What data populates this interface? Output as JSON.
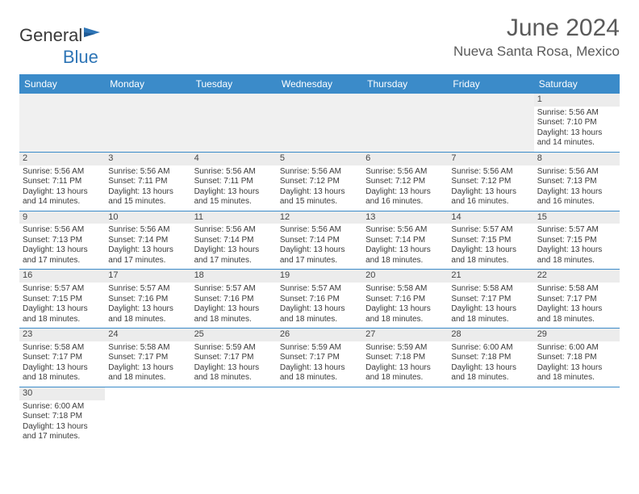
{
  "logo": {
    "text1": "General",
    "text2": "Blue"
  },
  "header": {
    "title": "June 2024",
    "location": "Nueva Santa Rosa, Mexico"
  },
  "colors": {
    "header_bar": "#3b8bc9",
    "header_text": "#ffffff",
    "daynum_bg": "#ececec",
    "border": "#3b8bc9",
    "body_text": "#3a3a3a",
    "title_text": "#5a5a5a",
    "logo_blue": "#2e75b6"
  },
  "weekdays": [
    "Sunday",
    "Monday",
    "Tuesday",
    "Wednesday",
    "Thursday",
    "Friday",
    "Saturday"
  ],
  "weeks": [
    [
      {
        "day": "",
        "empty": true
      },
      {
        "day": "",
        "empty": true
      },
      {
        "day": "",
        "empty": true
      },
      {
        "day": "",
        "empty": true
      },
      {
        "day": "",
        "empty": true
      },
      {
        "day": "",
        "empty": true
      },
      {
        "day": "1",
        "sunrise": "Sunrise: 5:56 AM",
        "sunset": "Sunset: 7:10 PM",
        "daylight1": "Daylight: 13 hours",
        "daylight2": "and 14 minutes."
      }
    ],
    [
      {
        "day": "2",
        "sunrise": "Sunrise: 5:56 AM",
        "sunset": "Sunset: 7:11 PM",
        "daylight1": "Daylight: 13 hours",
        "daylight2": "and 14 minutes."
      },
      {
        "day": "3",
        "sunrise": "Sunrise: 5:56 AM",
        "sunset": "Sunset: 7:11 PM",
        "daylight1": "Daylight: 13 hours",
        "daylight2": "and 15 minutes."
      },
      {
        "day": "4",
        "sunrise": "Sunrise: 5:56 AM",
        "sunset": "Sunset: 7:11 PM",
        "daylight1": "Daylight: 13 hours",
        "daylight2": "and 15 minutes."
      },
      {
        "day": "5",
        "sunrise": "Sunrise: 5:56 AM",
        "sunset": "Sunset: 7:12 PM",
        "daylight1": "Daylight: 13 hours",
        "daylight2": "and 15 minutes."
      },
      {
        "day": "6",
        "sunrise": "Sunrise: 5:56 AM",
        "sunset": "Sunset: 7:12 PM",
        "daylight1": "Daylight: 13 hours",
        "daylight2": "and 16 minutes."
      },
      {
        "day": "7",
        "sunrise": "Sunrise: 5:56 AM",
        "sunset": "Sunset: 7:12 PM",
        "daylight1": "Daylight: 13 hours",
        "daylight2": "and 16 minutes."
      },
      {
        "day": "8",
        "sunrise": "Sunrise: 5:56 AM",
        "sunset": "Sunset: 7:13 PM",
        "daylight1": "Daylight: 13 hours",
        "daylight2": "and 16 minutes."
      }
    ],
    [
      {
        "day": "9",
        "sunrise": "Sunrise: 5:56 AM",
        "sunset": "Sunset: 7:13 PM",
        "daylight1": "Daylight: 13 hours",
        "daylight2": "and 17 minutes."
      },
      {
        "day": "10",
        "sunrise": "Sunrise: 5:56 AM",
        "sunset": "Sunset: 7:14 PM",
        "daylight1": "Daylight: 13 hours",
        "daylight2": "and 17 minutes."
      },
      {
        "day": "11",
        "sunrise": "Sunrise: 5:56 AM",
        "sunset": "Sunset: 7:14 PM",
        "daylight1": "Daylight: 13 hours",
        "daylight2": "and 17 minutes."
      },
      {
        "day": "12",
        "sunrise": "Sunrise: 5:56 AM",
        "sunset": "Sunset: 7:14 PM",
        "daylight1": "Daylight: 13 hours",
        "daylight2": "and 17 minutes."
      },
      {
        "day": "13",
        "sunrise": "Sunrise: 5:56 AM",
        "sunset": "Sunset: 7:14 PM",
        "daylight1": "Daylight: 13 hours",
        "daylight2": "and 18 minutes."
      },
      {
        "day": "14",
        "sunrise": "Sunrise: 5:57 AM",
        "sunset": "Sunset: 7:15 PM",
        "daylight1": "Daylight: 13 hours",
        "daylight2": "and 18 minutes."
      },
      {
        "day": "15",
        "sunrise": "Sunrise: 5:57 AM",
        "sunset": "Sunset: 7:15 PM",
        "daylight1": "Daylight: 13 hours",
        "daylight2": "and 18 minutes."
      }
    ],
    [
      {
        "day": "16",
        "sunrise": "Sunrise: 5:57 AM",
        "sunset": "Sunset: 7:15 PM",
        "daylight1": "Daylight: 13 hours",
        "daylight2": "and 18 minutes."
      },
      {
        "day": "17",
        "sunrise": "Sunrise: 5:57 AM",
        "sunset": "Sunset: 7:16 PM",
        "daylight1": "Daylight: 13 hours",
        "daylight2": "and 18 minutes."
      },
      {
        "day": "18",
        "sunrise": "Sunrise: 5:57 AM",
        "sunset": "Sunset: 7:16 PM",
        "daylight1": "Daylight: 13 hours",
        "daylight2": "and 18 minutes."
      },
      {
        "day": "19",
        "sunrise": "Sunrise: 5:57 AM",
        "sunset": "Sunset: 7:16 PM",
        "daylight1": "Daylight: 13 hours",
        "daylight2": "and 18 minutes."
      },
      {
        "day": "20",
        "sunrise": "Sunrise: 5:58 AM",
        "sunset": "Sunset: 7:16 PM",
        "daylight1": "Daylight: 13 hours",
        "daylight2": "and 18 minutes."
      },
      {
        "day": "21",
        "sunrise": "Sunrise: 5:58 AM",
        "sunset": "Sunset: 7:17 PM",
        "daylight1": "Daylight: 13 hours",
        "daylight2": "and 18 minutes."
      },
      {
        "day": "22",
        "sunrise": "Sunrise: 5:58 AM",
        "sunset": "Sunset: 7:17 PM",
        "daylight1": "Daylight: 13 hours",
        "daylight2": "and 18 minutes."
      }
    ],
    [
      {
        "day": "23",
        "sunrise": "Sunrise: 5:58 AM",
        "sunset": "Sunset: 7:17 PM",
        "daylight1": "Daylight: 13 hours",
        "daylight2": "and 18 minutes."
      },
      {
        "day": "24",
        "sunrise": "Sunrise: 5:58 AM",
        "sunset": "Sunset: 7:17 PM",
        "daylight1": "Daylight: 13 hours",
        "daylight2": "and 18 minutes."
      },
      {
        "day": "25",
        "sunrise": "Sunrise: 5:59 AM",
        "sunset": "Sunset: 7:17 PM",
        "daylight1": "Daylight: 13 hours",
        "daylight2": "and 18 minutes."
      },
      {
        "day": "26",
        "sunrise": "Sunrise: 5:59 AM",
        "sunset": "Sunset: 7:17 PM",
        "daylight1": "Daylight: 13 hours",
        "daylight2": "and 18 minutes."
      },
      {
        "day": "27",
        "sunrise": "Sunrise: 5:59 AM",
        "sunset": "Sunset: 7:18 PM",
        "daylight1": "Daylight: 13 hours",
        "daylight2": "and 18 minutes."
      },
      {
        "day": "28",
        "sunrise": "Sunrise: 6:00 AM",
        "sunset": "Sunset: 7:18 PM",
        "daylight1": "Daylight: 13 hours",
        "daylight2": "and 18 minutes."
      },
      {
        "day": "29",
        "sunrise": "Sunrise: 6:00 AM",
        "sunset": "Sunset: 7:18 PM",
        "daylight1": "Daylight: 13 hours",
        "daylight2": "and 18 minutes."
      }
    ],
    [
      {
        "day": "30",
        "sunrise": "Sunrise: 6:00 AM",
        "sunset": "Sunset: 7:18 PM",
        "daylight1": "Daylight: 13 hours",
        "daylight2": "and 17 minutes."
      },
      {
        "day": "",
        "empty": true,
        "trailing": true
      },
      {
        "day": "",
        "empty": true,
        "trailing": true
      },
      {
        "day": "",
        "empty": true,
        "trailing": true
      },
      {
        "day": "",
        "empty": true,
        "trailing": true
      },
      {
        "day": "",
        "empty": true,
        "trailing": true
      },
      {
        "day": "",
        "empty": true,
        "trailing": true
      }
    ]
  ]
}
